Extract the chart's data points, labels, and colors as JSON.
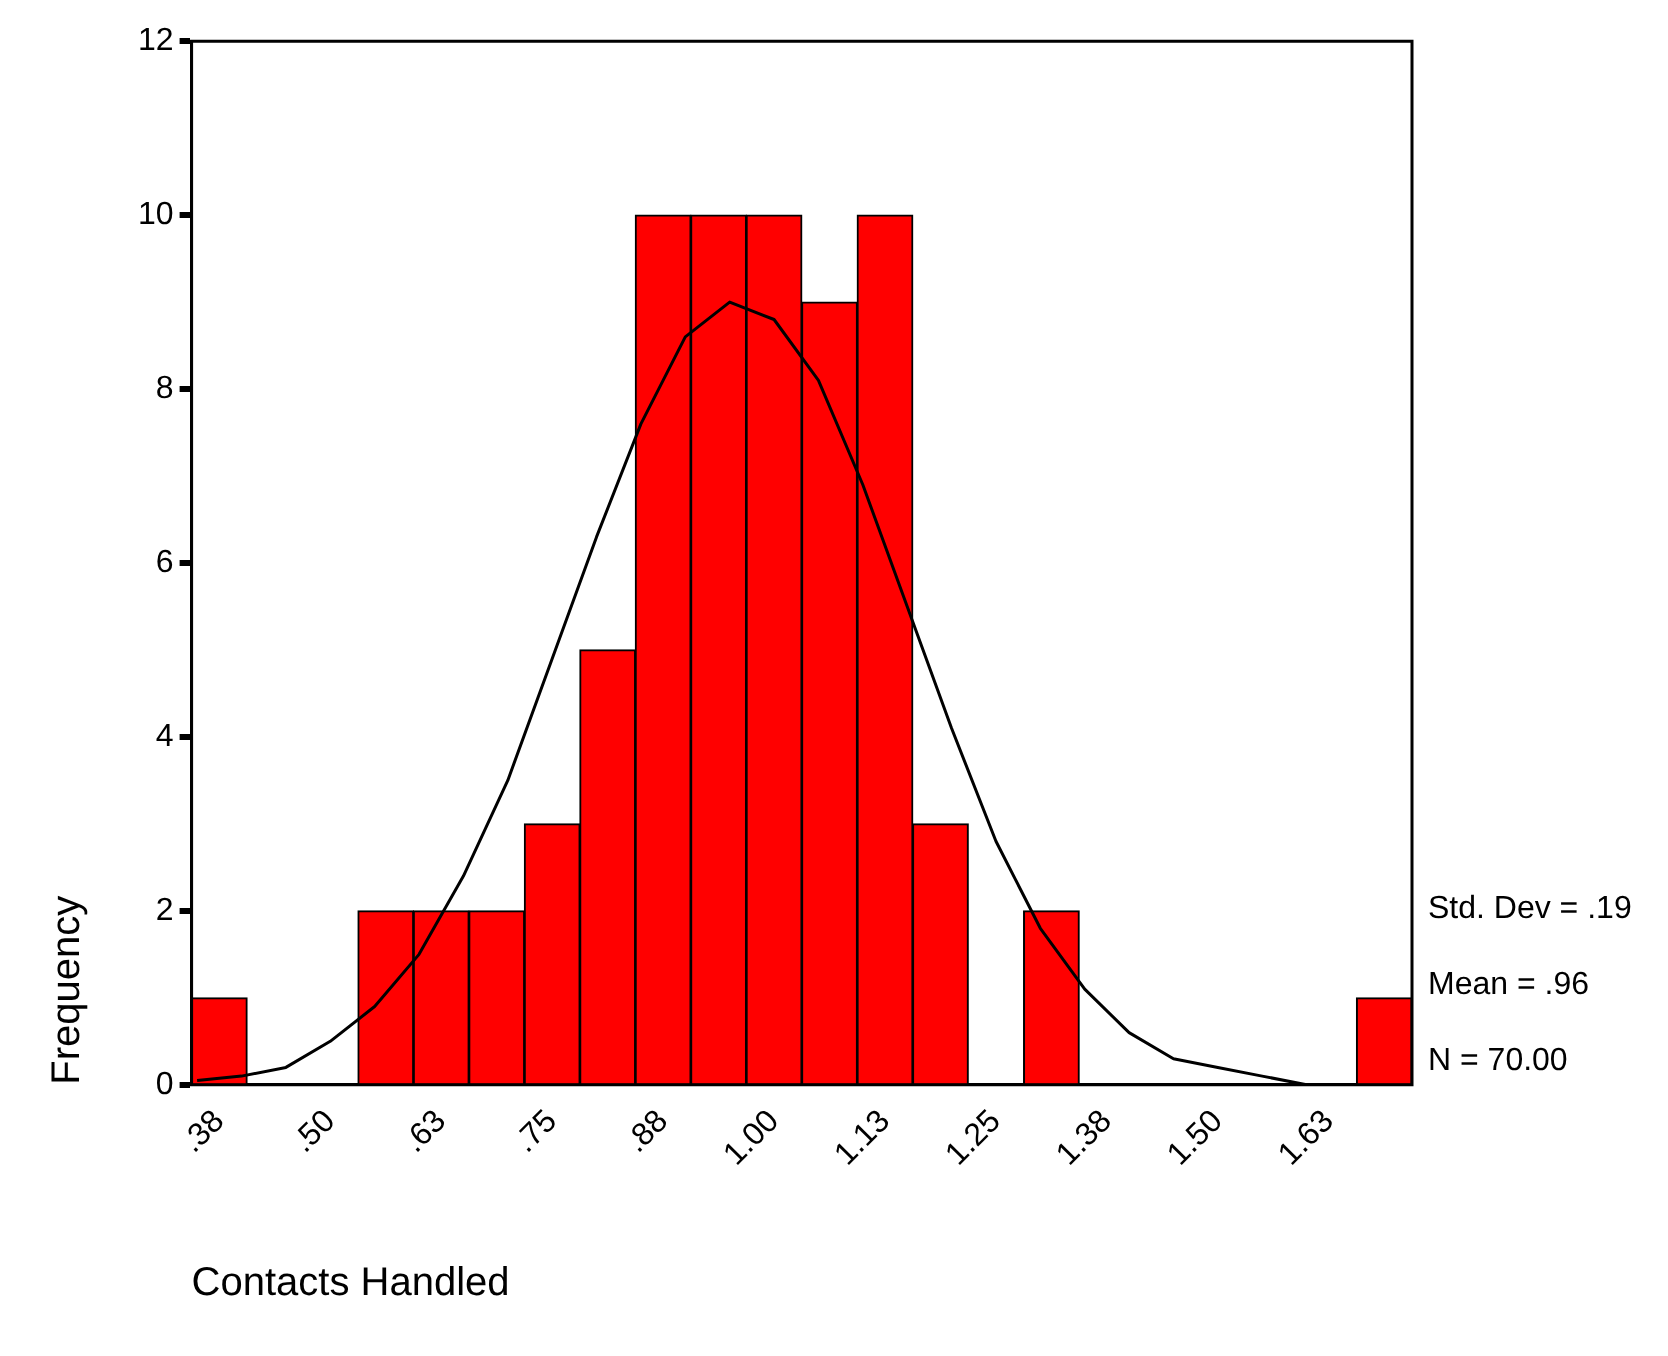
{
  "chart_data": {
    "type": "histogram",
    "xlabel": "Contacts Handled",
    "ylabel": "Frequency",
    "bins": [
      0.34375,
      0.40625,
      0.46875,
      0.53125,
      0.59375,
      0.65625,
      0.71875,
      0.78125,
      0.84375,
      0.90625,
      0.96875,
      1.03125,
      1.09375,
      1.15625,
      1.21875,
      1.28125,
      1.34375,
      1.40625,
      1.46875,
      1.53125,
      1.59375,
      1.65625,
      1.71875
    ],
    "values": [
      1,
      0,
      0,
      2,
      2,
      2,
      3,
      5,
      10,
      10,
      10,
      9,
      10,
      3,
      0,
      2,
      0,
      0,
      0,
      0,
      0,
      1
    ],
    "color": "#ff0000",
    "series": [
      {
        "type": "line",
        "color": "#000000",
        "x": [
          0.35,
          0.4,
          0.45,
          0.5,
          0.55,
          0.6,
          0.65,
          0.7,
          0.75,
          0.8,
          0.85,
          0.9,
          0.95,
          1.0,
          1.05,
          1.1,
          1.15,
          1.2,
          1.25,
          1.3,
          1.35,
          1.4,
          1.45,
          1.5,
          1.55,
          1.6
        ],
        "values": [
          0.05,
          0.1,
          0.2,
          0.5,
          0.9,
          1.5,
          2.4,
          3.5,
          4.9,
          6.3,
          7.6,
          8.6,
          9.0,
          8.8,
          8.1,
          6.9,
          5.5,
          4.1,
          2.8,
          1.8,
          1.1,
          0.6,
          0.3,
          0.2,
          0.1,
          0.0
        ]
      }
    ],
    "xlim": [
      0.34375,
      1.71875
    ],
    "xticks": [
      {
        "value": 0.375,
        "label": ".38"
      },
      {
        "value": 0.5,
        "label": ".50"
      },
      {
        "value": 0.625,
        "label": ".63"
      },
      {
        "value": 0.75,
        "label": ".75"
      },
      {
        "value": 0.875,
        "label": ".88"
      },
      {
        "value": 1.0,
        "label": "1.00"
      },
      {
        "value": 1.125,
        "label": "1.13"
      },
      {
        "value": 1.25,
        "label": "1.25"
      },
      {
        "value": 1.375,
        "label": "1.38"
      },
      {
        "value": 1.5,
        "label": "1.50"
      },
      {
        "value": 1.625,
        "label": "1.63"
      }
    ],
    "ylim": [
      0,
      12
    ],
    "yticks": [
      0,
      2,
      4,
      6,
      8,
      10,
      12
    ],
    "grid": false,
    "legend": false,
    "annotations": [
      "Std. Dev = .19",
      "Mean = .96",
      "N = 70.00"
    ]
  }
}
